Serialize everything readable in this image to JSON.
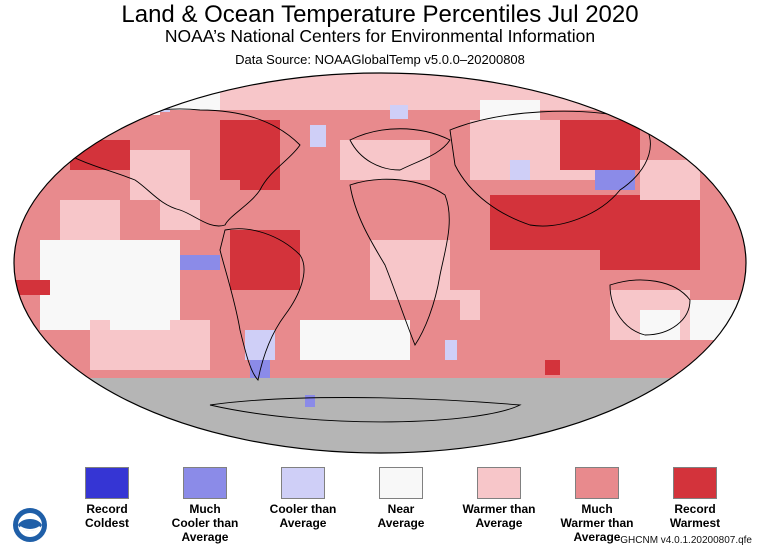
{
  "header": {
    "title": "Land & Ocean Temperature Percentiles Jul 2020",
    "subtitle": "NOAA’s National Centers for Environmental Information",
    "source": "Data Source: NOAAGlobalTemp v5.0.0–20200808"
  },
  "legend": [
    {
      "label": "Record\nColdest",
      "color": "#3535d4"
    },
    {
      "label": "Much\nCooler than\nAverage",
      "color": "#8b8be8"
    },
    {
      "label": "Cooler than\nAverage",
      "color": "#cfcff7"
    },
    {
      "label": "Near\nAverage",
      "color": "#f8f8f8"
    },
    {
      "label": "Warmer than\nAverage",
      "color": "#f7c6c9"
    },
    {
      "label": "Much\nWarmer than\nAverage",
      "color": "#e88a8d"
    },
    {
      "label": "Record\nWarmest",
      "color": "#d3333b"
    }
  ],
  "map": {
    "no_data_color": "#b5b5b5",
    "ocean_default": "#e88a8d"
  },
  "footer": {
    "version": "GHCNM v4.0.1.20200807.qfe"
  },
  "logo": {
    "icon": "noaa-logo-icon"
  }
}
